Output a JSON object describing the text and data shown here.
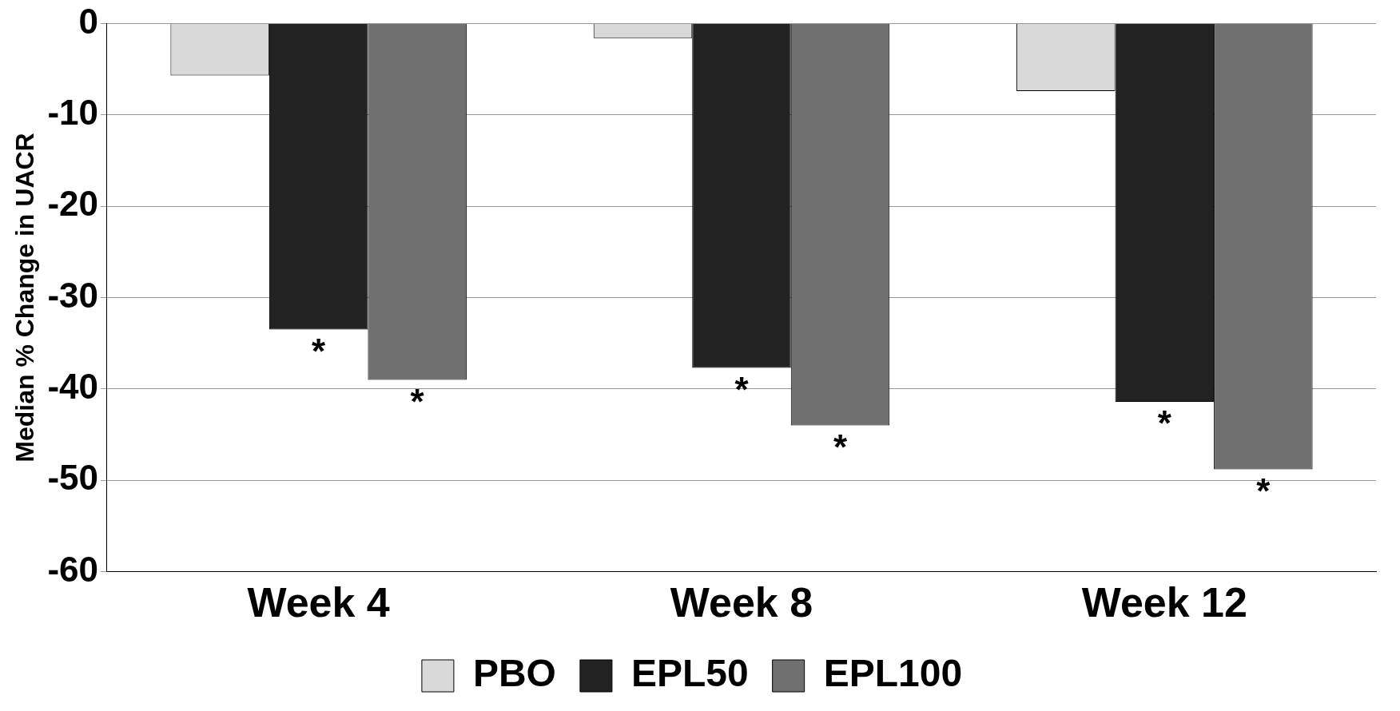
{
  "chart_data": {
    "type": "bar",
    "ylabel": "Median % Change in UACR",
    "categories": [
      "Week 4",
      "Week 8",
      "Week 12"
    ],
    "series": [
      {
        "name": "PBO",
        "color": "#d9d9d9",
        "values": [
          -5.7,
          -1.6,
          -7.4
        ]
      },
      {
        "name": "EPL50",
        "color": "#222222",
        "values": [
          -33.5,
          -37.7,
          -41.4
        ]
      },
      {
        "name": "EPL100",
        "color": "#707070",
        "values": [
          -39,
          -44,
          -48.8
        ]
      }
    ],
    "ylim": [
      -60,
      0
    ],
    "yticks": [
      -60,
      -50,
      -40,
      -30,
      -20,
      -10,
      0
    ],
    "grid": "y",
    "legend": "bottom",
    "annotations": [
      "*",
      "*",
      "*",
      "*",
      "*",
      "*"
    ]
  }
}
